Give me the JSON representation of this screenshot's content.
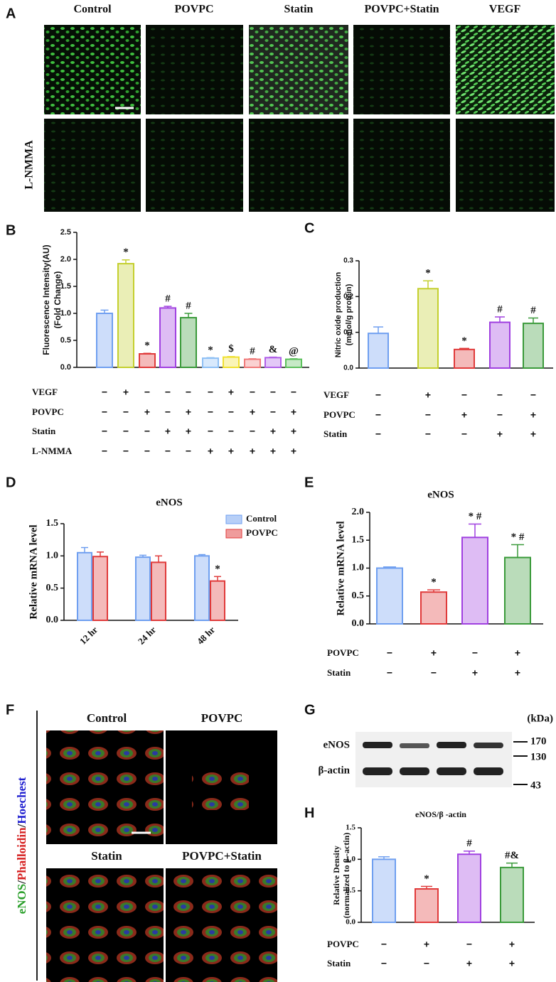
{
  "panel_letters": [
    "A",
    "B",
    "C",
    "D",
    "E",
    "F",
    "G",
    "H"
  ],
  "panel_a": {
    "columns": [
      "Control",
      "POVPC",
      "Statin",
      "POVPC+Statin",
      "VEGF"
    ],
    "row_label": "L-NMMA"
  },
  "panel_f": {
    "columns_top": [
      "Control",
      "POVPC"
    ],
    "columns_bottom": [
      "Statin",
      "POVPC+Statin"
    ],
    "stain_label": [
      "eNOS",
      "/",
      "Phalloidin",
      "/",
      "Hoechest"
    ]
  },
  "panel_g": {
    "unit": "(kDa)",
    "rows": [
      "eNOS",
      "β-actin"
    ],
    "markers": [
      170,
      130,
      43
    ]
  },
  "chart_data": [
    {
      "type": "bar",
      "ylabel": [
        "Fluorescence Intensity(AU)",
        "(Fold Change)"
      ],
      "ylim": [
        0,
        2.5
      ],
      "yticks": [
        {
          "value": 0,
          "label": "0.0"
        },
        0.5,
        {
          "value": 1,
          "label": "1.0"
        },
        1.5,
        {
          "value": 2,
          "label": "2.0"
        },
        2.5
      ],
      "values": [
        1.0,
        1.92,
        0.25,
        1.1,
        0.92,
        0.17,
        0.19,
        0.15,
        0.18,
        0.15
      ],
      "errors": [
        0.06,
        0.07,
        0.01,
        0.03,
        0.08,
        0.01,
        0.01,
        0.01,
        0.01,
        0.01
      ],
      "annotations": [
        null,
        "*",
        "*",
        "#",
        "#",
        "*",
        "$",
        "#",
        "&",
        "@"
      ],
      "colors": [
        "#6f9ff0",
        "#c4cf2e",
        "#e03a3a",
        "#a040e0",
        "#3a9a3a",
        "#8ec0f5",
        "#f0e030",
        "#f07a7a",
        "#b060e8",
        "#5cc05c"
      ],
      "treatments": [
        {
          "name": "VEGF",
          "signs": [
            "−",
            "+",
            "−",
            "−",
            "−",
            "−",
            "+",
            "−",
            "−",
            "−"
          ]
        },
        {
          "name": "POVPC",
          "signs": [
            "−",
            "−",
            "+",
            "−",
            "+",
            "−",
            "−",
            "+",
            "−",
            "+"
          ]
        },
        {
          "name": "Statin",
          "signs": [
            "−",
            "−",
            "−",
            "+",
            "+",
            "−",
            "−",
            "−",
            "+",
            "+"
          ]
        },
        {
          "name": "L-NMMA",
          "signs": [
            "−",
            "−",
            "−",
            "−",
            "−",
            "+",
            "+",
            "+",
            "+",
            "+"
          ]
        }
      ]
    },
    {
      "type": "bar",
      "ylabel": [
        "Nitric oxide production",
        "(mmol/g protein)"
      ],
      "ylim": [
        0,
        0.3
      ],
      "yticks": [
        {
          "value": 0,
          "label": "0.0"
        },
        0.1,
        0.2,
        0.3
      ],
      "values": [
        0.097,
        0.222,
        0.052,
        0.128,
        0.125
      ],
      "errors": [
        0.018,
        0.022,
        0.003,
        0.015,
        0.015
      ],
      "annotations": [
        null,
        "*",
        "*",
        "#",
        "#"
      ],
      "colors": [
        "#6f9ff0",
        "#c4cf2e",
        "#e03a3a",
        "#a040e0",
        "#3a9a3a"
      ],
      "treatments": [
        {
          "name": "VEGF",
          "signs": [
            "−",
            "+",
            "−",
            "−",
            "−"
          ]
        },
        {
          "name": "POVPC",
          "signs": [
            "−",
            "−",
            "+",
            "−",
            "+"
          ]
        },
        {
          "name": "Statin",
          "signs": [
            "−",
            "−",
            "−",
            "+",
            "+"
          ]
        }
      ]
    },
    {
      "type": "grouped_bar",
      "title": "eNOS",
      "ylabel": [
        "Relative mRNA level"
      ],
      "ylim": [
        0,
        1.5
      ],
      "yticks": [
        {
          "value": 0,
          "label": "0.0"
        },
        0.5,
        {
          "value": 1,
          "label": "1.0"
        },
        1.5
      ],
      "categories": [
        "12 hr",
        "24 hr",
        "48 hr"
      ],
      "legend": "upper right",
      "series": [
        {
          "name": "Control",
          "color": "#6f9ff0",
          "values": [
            1.05,
            0.98,
            1.0
          ],
          "errors": [
            0.08,
            0.03,
            0.02
          ]
        },
        {
          "name": "POVPC",
          "color": "#e03a3a",
          "values": [
            0.99,
            0.9,
            0.61
          ],
          "errors": [
            0.07,
            0.1,
            0.07
          ],
          "annotations": [
            null,
            null,
            "*"
          ]
        }
      ]
    },
    {
      "type": "bar",
      "title": "eNOS",
      "ylabel": [
        "Relative mRNA level"
      ],
      "ylim": [
        0,
        2.0
      ],
      "yticks": [
        {
          "value": 0,
          "label": "0.0"
        },
        0.5,
        {
          "value": 1,
          "label": "1.0"
        },
        1.5,
        {
          "value": 2,
          "label": "2.0"
        }
      ],
      "values": [
        1.0,
        0.57,
        1.55,
        1.19
      ],
      "errors": [
        0.02,
        0.04,
        0.24,
        0.23
      ],
      "annotations": [
        null,
        "*",
        "* #",
        "* #"
      ],
      "colors": [
        "#6f9ff0",
        "#e03a3a",
        "#a040e0",
        "#3a9a3a"
      ],
      "treatments": [
        {
          "name": "POVPC",
          "signs": [
            "−",
            "+",
            "−",
            "+"
          ]
        },
        {
          "name": "Statin",
          "signs": [
            "−",
            "−",
            "+",
            "+"
          ]
        }
      ]
    },
    {
      "type": "bar",
      "title": "eNOS/β -actin",
      "ylabel": [
        "Relative Density",
        "(normalized to β -actin)"
      ],
      "ylim": [
        0,
        1.5
      ],
      "yticks": [
        {
          "value": 0,
          "label": "0.0"
        },
        0.5,
        {
          "value": 1,
          "label": "1.0"
        },
        1.5
      ],
      "values": [
        1.0,
        0.53,
        1.08,
        0.87
      ],
      "errors": [
        0.04,
        0.04,
        0.05,
        0.07
      ],
      "annotations": [
        null,
        "*",
        "#",
        "#&"
      ],
      "colors": [
        "#6f9ff0",
        "#e03a3a",
        "#a040e0",
        "#3a9a3a"
      ],
      "treatments": [
        {
          "name": "POVPC",
          "signs": [
            "−",
            "+",
            "−",
            "+"
          ]
        },
        {
          "name": "Statin",
          "signs": [
            "−",
            "−",
            "+",
            "+"
          ]
        }
      ]
    }
  ]
}
